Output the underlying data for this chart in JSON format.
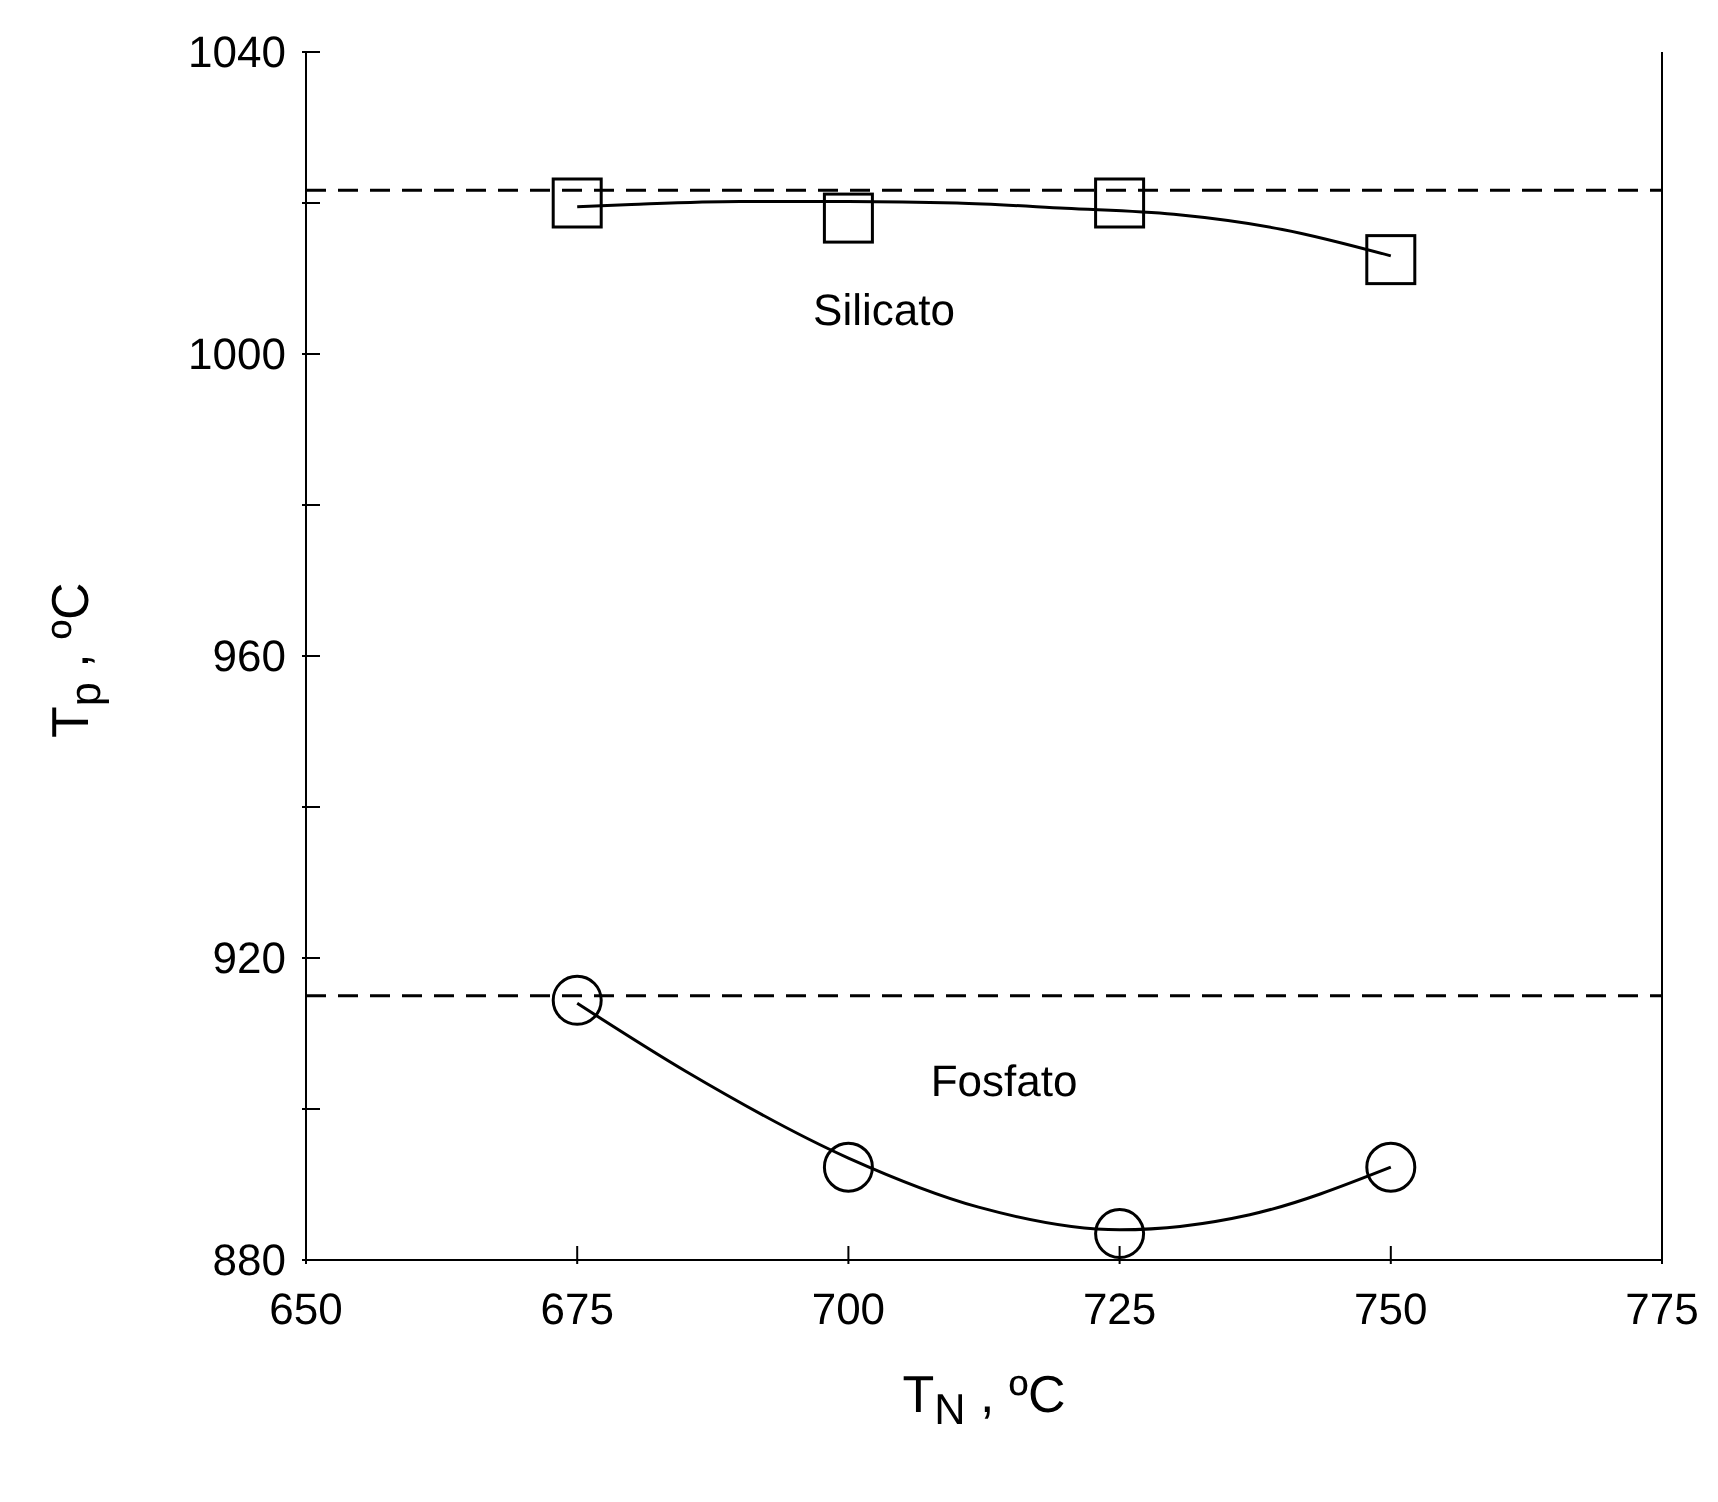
{
  "chart_data": {
    "type": "scatter",
    "xlabel": "T$_{N}$ , ºC",
    "ylabel": "T$_{p}$ , ºC",
    "xlim": [
      650,
      775
    ],
    "xticks": [
      650,
      675,
      700,
      725,
      750,
      775
    ],
    "ylim": [
      880,
      1040
    ],
    "yticks": [
      880,
      {
        "value": 900,
        "label": null
      },
      920,
      {
        "value": 940,
        "label": null
      },
      960,
      {
        "value": 980,
        "label": null
      },
      1000,
      {
        "value": 1020,
        "label": null
      },
      1040
    ],
    "series": [
      {
        "name": "Silicato",
        "marker": "square",
        "color": "#000000",
        "x": [
          675,
          700,
          725,
          750
        ],
        "values": [
          1020,
          1018,
          1020,
          1012.5
        ]
      },
      {
        "type": "line",
        "marker": "none",
        "color": "#000000",
        "x": [
          675,
          680,
          690,
          700,
          710,
          720,
          730,
          740,
          750
        ],
        "values": [
          1019.5,
          1019.8,
          1020.2,
          1020.2,
          1020,
          1019.3,
          1018.5,
          1016.5,
          1013
        ]
      },
      {
        "name": "Fosfato",
        "marker": "circle",
        "color": "#000000",
        "x": [
          675,
          700,
          725,
          750
        ],
        "values": [
          914.4,
          892.3,
          883.5,
          892.3
        ]
      },
      {
        "type": "line",
        "marker": "none",
        "color": "#000000",
        "x": [
          675,
          685,
          700,
          712,
          725,
          737,
          750
        ],
        "values": [
          914,
          905,
          893.5,
          887,
          884,
          886,
          892.3
        ]
      }
    ],
    "ref_lines": [
      {
        "axis": "y",
        "value": 1021.7,
        "line_style": "dashed",
        "color": "#000000"
      },
      {
        "axis": "y",
        "value": 915,
        "line_style": "dashed",
        "color": "#000000"
      }
    ]
  }
}
